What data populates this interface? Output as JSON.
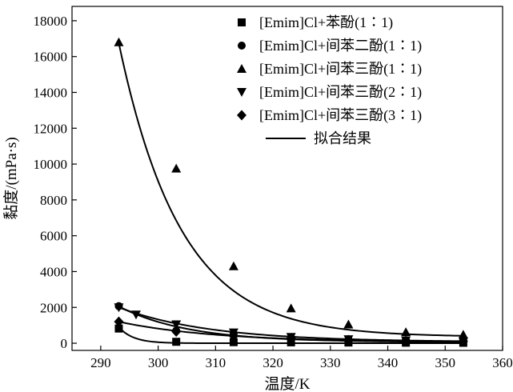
{
  "chart_data": {
    "type": "scatter",
    "xlabel": "温度/K",
    "ylabel": "黏度/(mPa·s)",
    "xlim": [
      285,
      360
    ],
    "ylim": [
      -400,
      18800
    ],
    "x_ticks": [
      290,
      300,
      310,
      320,
      330,
      340,
      350,
      360
    ],
    "y_ticks": [
      0,
      2000,
      4000,
      6000,
      8000,
      10000,
      12000,
      14000,
      16000,
      18000
    ],
    "grid": false,
    "legend_position": "top-right",
    "series": [
      {
        "name": "[Emim]Cl+苯酚(1∶1)",
        "marker": "square",
        "x": [
          293.15,
          303.15,
          313.15,
          323.15,
          333.15,
          343.15,
          353.15
        ],
        "y": [
          820,
          80,
          60,
          50,
          40,
          30,
          25
        ]
      },
      {
        "name": "[Emim]Cl+间苯二酚(1∶1)",
        "marker": "circle",
        "x": [
          293.15,
          303.15,
          313.15,
          323.15,
          333.15,
          343.15,
          353.15
        ],
        "y": [
          2070,
          700,
          520,
          320,
          220,
          150,
          110
        ]
      },
      {
        "name": "[Emim]Cl+间苯三酚(1∶1)",
        "marker": "triangle-up",
        "x": [
          293.15,
          303.15,
          313.15,
          323.15,
          333.15,
          343.15,
          353.15
        ],
        "y": [
          16800,
          9750,
          4300,
          1950,
          1050,
          620,
          480
        ]
      },
      {
        "name": "[Emim]Cl+间苯三酚(2∶1)",
        "marker": "triangle-down",
        "x": [
          293.15,
          296.15,
          303.15,
          313.15,
          323.15,
          333.15,
          343.15,
          353.15
        ],
        "y": [
          2000,
          1600,
          1050,
          600,
          350,
          220,
          150,
          110
        ]
      },
      {
        "name": "[Emim]Cl+间苯三酚(3∶1)",
        "marker": "diamond",
        "x": [
          293.15,
          303.15,
          313.15,
          323.15,
          333.15,
          343.15,
          353.15
        ],
        "y": [
          1200,
          650,
          400,
          280,
          180,
          130,
          100
        ]
      }
    ],
    "fit_legend": "拟合结果",
    "fits": [
      {
        "y0": 0,
        "A": 900,
        "T0": 293.15,
        "tau": 2.5
      },
      {
        "y0": 60,
        "A": 2000,
        "T0": 293.15,
        "tau": 12
      },
      {
        "y0": 350,
        "A": 16400,
        "T0": 293.15,
        "tau": 10.8
      },
      {
        "y0": 70,
        "A": 1930,
        "T0": 293.15,
        "tau": 16
      },
      {
        "y0": 50,
        "A": 1150,
        "T0": 293.15,
        "tau": 17
      }
    ]
  }
}
